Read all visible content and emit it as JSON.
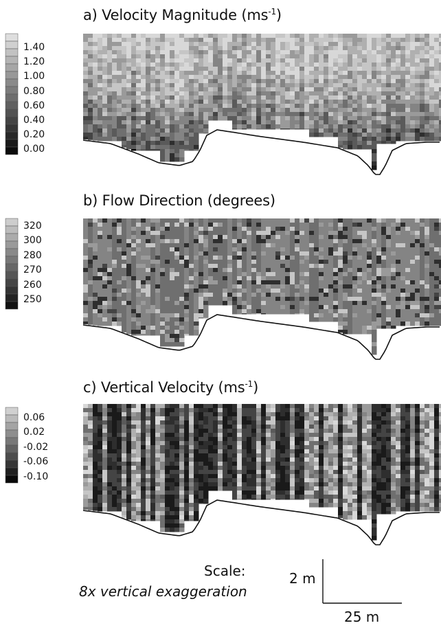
{
  "panels": [
    {
      "id": "a",
      "title_prefix": "a) Velocity Magnitude (ms",
      "title_sup": "-1",
      "title_suffix": ")",
      "legend_labels": [
        "1.40",
        "1.20",
        "1.00",
        "0.80",
        "0.60",
        "0.40",
        "0.20",
        "0.00"
      ]
    },
    {
      "id": "b",
      "title_prefix": "b) Flow Direction (degrees)",
      "title_sup": "",
      "title_suffix": "",
      "legend_labels": [
        "320",
        "300",
        "280",
        "270",
        "260",
        "250"
      ]
    },
    {
      "id": "c",
      "title_prefix": "c) Vertical Velocity (ms",
      "title_sup": "-1",
      "title_suffix": ")",
      "legend_labels": [
        "0.06",
        "0.02",
        "-0.02",
        "-0.06",
        "-0.10"
      ]
    }
  ],
  "scale": {
    "title": "Scale:",
    "note": "8x vertical exaggeration",
    "vertical_label": "2 m",
    "horizontal_label": "25 m"
  },
  "chart_data": [
    {
      "type": "heatmap",
      "title": "a) Velocity Magnitude (ms-1)",
      "colorscale": "grayscale, dark = low, light = high",
      "legend_ticks": [
        1.4,
        1.2,
        1.0,
        0.8,
        0.6,
        0.4,
        0.2,
        0.0
      ],
      "value_range": [
        0.0,
        1.5
      ],
      "dominant_values": "mostly 1.0–1.4, darker bands 0.4–0.8 near bed"
    },
    {
      "type": "heatmap",
      "title": "b) Flow Direction (degrees)",
      "colorscale": "grayscale, dark = low, light = high",
      "legend_ticks": [
        320,
        300,
        280,
        270,
        260,
        250
      ],
      "value_range": [
        250,
        330
      ],
      "dominant_values": "mostly 280–300 with scattered 260–270 and 310–320 patches"
    },
    {
      "type": "heatmap",
      "title": "c) Vertical Velocity (ms-1)",
      "colorscale": "grayscale, dark = low, light = high",
      "legend_ticks": [
        0.06,
        0.02,
        -0.02,
        -0.06,
        -0.1
      ],
      "value_range": [
        -0.12,
        0.08
      ],
      "dominant_values": "alternating vertical bands between -0.10 and 0.06"
    }
  ],
  "colors": {
    "grays": [
      "#000000",
      "#1a1a1a",
      "#2e2e2e",
      "#444444",
      "#5a5a5a",
      "#6f6f6f",
      "#848484",
      "#9a9a9a",
      "#b0b0b0",
      "#c6c6c6",
      "#d8d8d8"
    ]
  }
}
